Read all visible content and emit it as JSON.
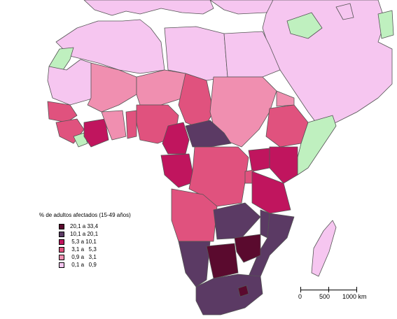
{
  "legend": {
    "title": "% de adultos afectados (15-49 años)",
    "classes": [
      {
        "label": "20,1 a 33,4",
        "color": "#5a0a2e"
      },
      {
        "label": "10,1 a 20,1",
        "color": "#5b3a64"
      },
      {
        "label": " 5,3 a 10,1",
        "color": "#c0155e"
      },
      {
        "label": " 3,1 a   5,3",
        "color": "#e0527e"
      },
      {
        "label": " 0,9 a   3,1",
        "color": "#f08fb0"
      },
      {
        "label": " 0,1 a   0,9",
        "color": "#f6c6f0"
      }
    ]
  },
  "nodata_color": "#bff0bf",
  "scale_bar": {
    "labels": [
      "0",
      "500",
      "1000 km"
    ]
  }
}
